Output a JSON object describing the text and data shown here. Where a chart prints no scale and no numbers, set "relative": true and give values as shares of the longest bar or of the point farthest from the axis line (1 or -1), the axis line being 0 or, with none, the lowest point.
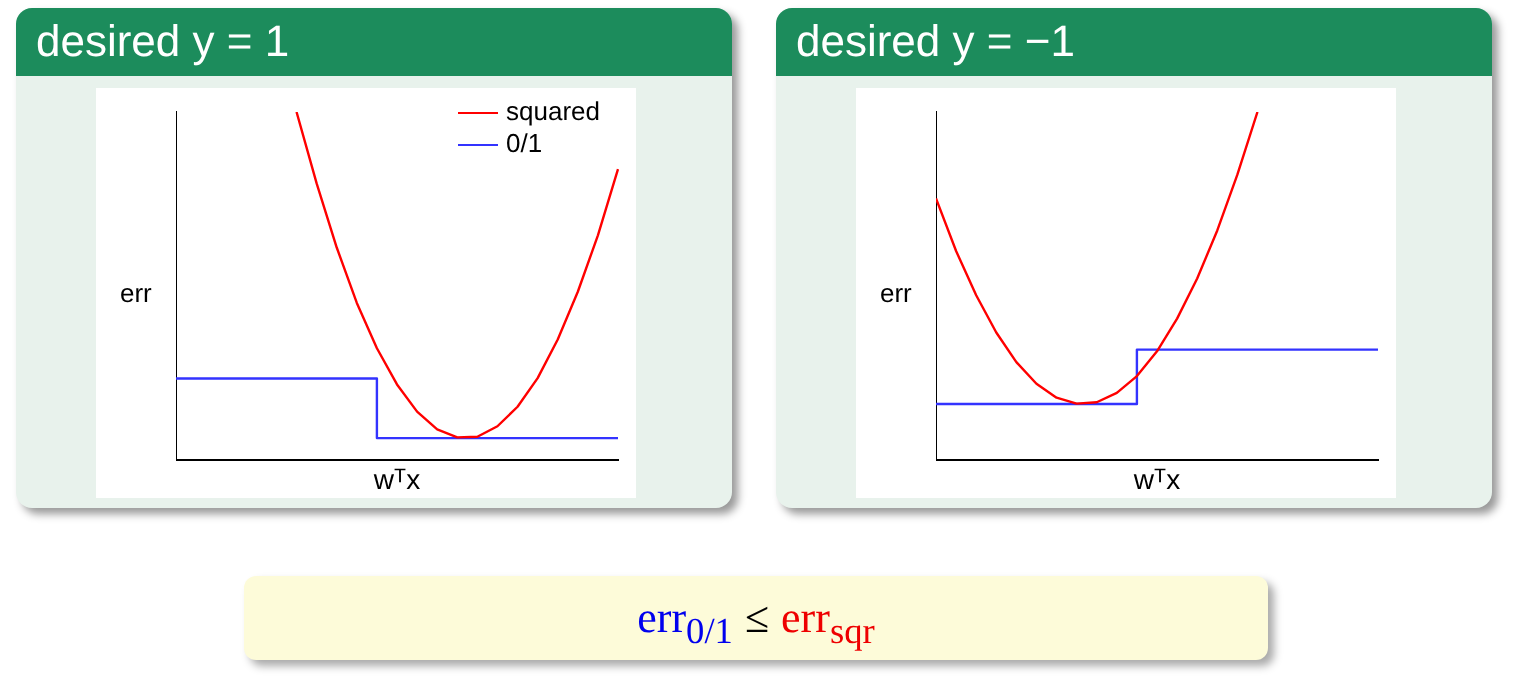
{
  "chart_data": [
    {
      "type": "line",
      "title": "desired y = 1",
      "xlabel": "wᵀx",
      "ylabel": "err",
      "relative": true,
      "grid": false,
      "legend": "top right",
      "marker": "none",
      "categories": [
        null,
        null,
        null,
        null,
        null,
        null,
        null,
        null,
        null,
        null,
        null,
        null,
        null,
        null,
        null,
        null,
        null,
        null,
        null,
        null,
        null,
        null,
        null
      ],
      "series": [
        {
          "name": "squared",
          "color": "#ff0000",
          "values": [
            null,
            null,
            null,
            null,
            null,
            null,
            1.0,
            0.795,
            0.611,
            0.452,
            0.322,
            0.218,
            0.14,
            0.089,
            0.066,
            0.068,
            0.098,
            0.154,
            0.236,
            0.347,
            0.484,
            0.646,
            0.836
          ]
        },
        {
          "name": "0/1",
          "type": "step",
          "color": "#3333ff",
          "values": [
            0.235,
            0.235,
            0.235,
            0.235,
            0.235,
            0.235,
            0.235,
            0.235,
            0.235,
            0.235,
            0.235,
            0.064,
            0.064,
            0.064,
            0.064,
            0.064,
            0.064,
            0.064,
            0.064,
            0.064,
            0.064,
            0.064,
            0.064
          ]
        }
      ]
    },
    {
      "type": "line",
      "title": "desired y = −1",
      "xlabel": "wᵀx",
      "ylabel": "err",
      "relative": true,
      "grid": false,
      "marker": "none",
      "categories": [
        null,
        null,
        null,
        null,
        null,
        null,
        null,
        null,
        null,
        null,
        null,
        null,
        null,
        null,
        null,
        null,
        null,
        null,
        null,
        null,
        null,
        null,
        null
      ],
      "series": [
        {
          "color": "#ff0000",
          "values": [
            0.752,
            0.601,
            0.474,
            0.367,
            0.282,
            0.22,
            0.18,
            0.163,
            0.167,
            0.194,
            0.242,
            0.313,
            0.407,
            0.522,
            0.66,
            0.82,
            1.0,
            null,
            null,
            null,
            null,
            null,
            null
          ]
        },
        {
          "type": "step",
          "color": "#3333ff",
          "values": [
            0.162,
            0.162,
            0.162,
            0.162,
            0.162,
            0.162,
            0.162,
            0.162,
            0.162,
            0.162,
            0.162,
            0.318,
            0.318,
            0.318,
            0.318,
            0.318,
            0.318,
            0.318,
            0.318,
            0.318,
            0.318,
            0.318,
            0.318
          ]
        }
      ]
    },
    {
      "type": "other",
      "annotations": [
        "err$_{0/1}$",
        "≤",
        "err$_{sqr}$"
      ]
    }
  ]
}
